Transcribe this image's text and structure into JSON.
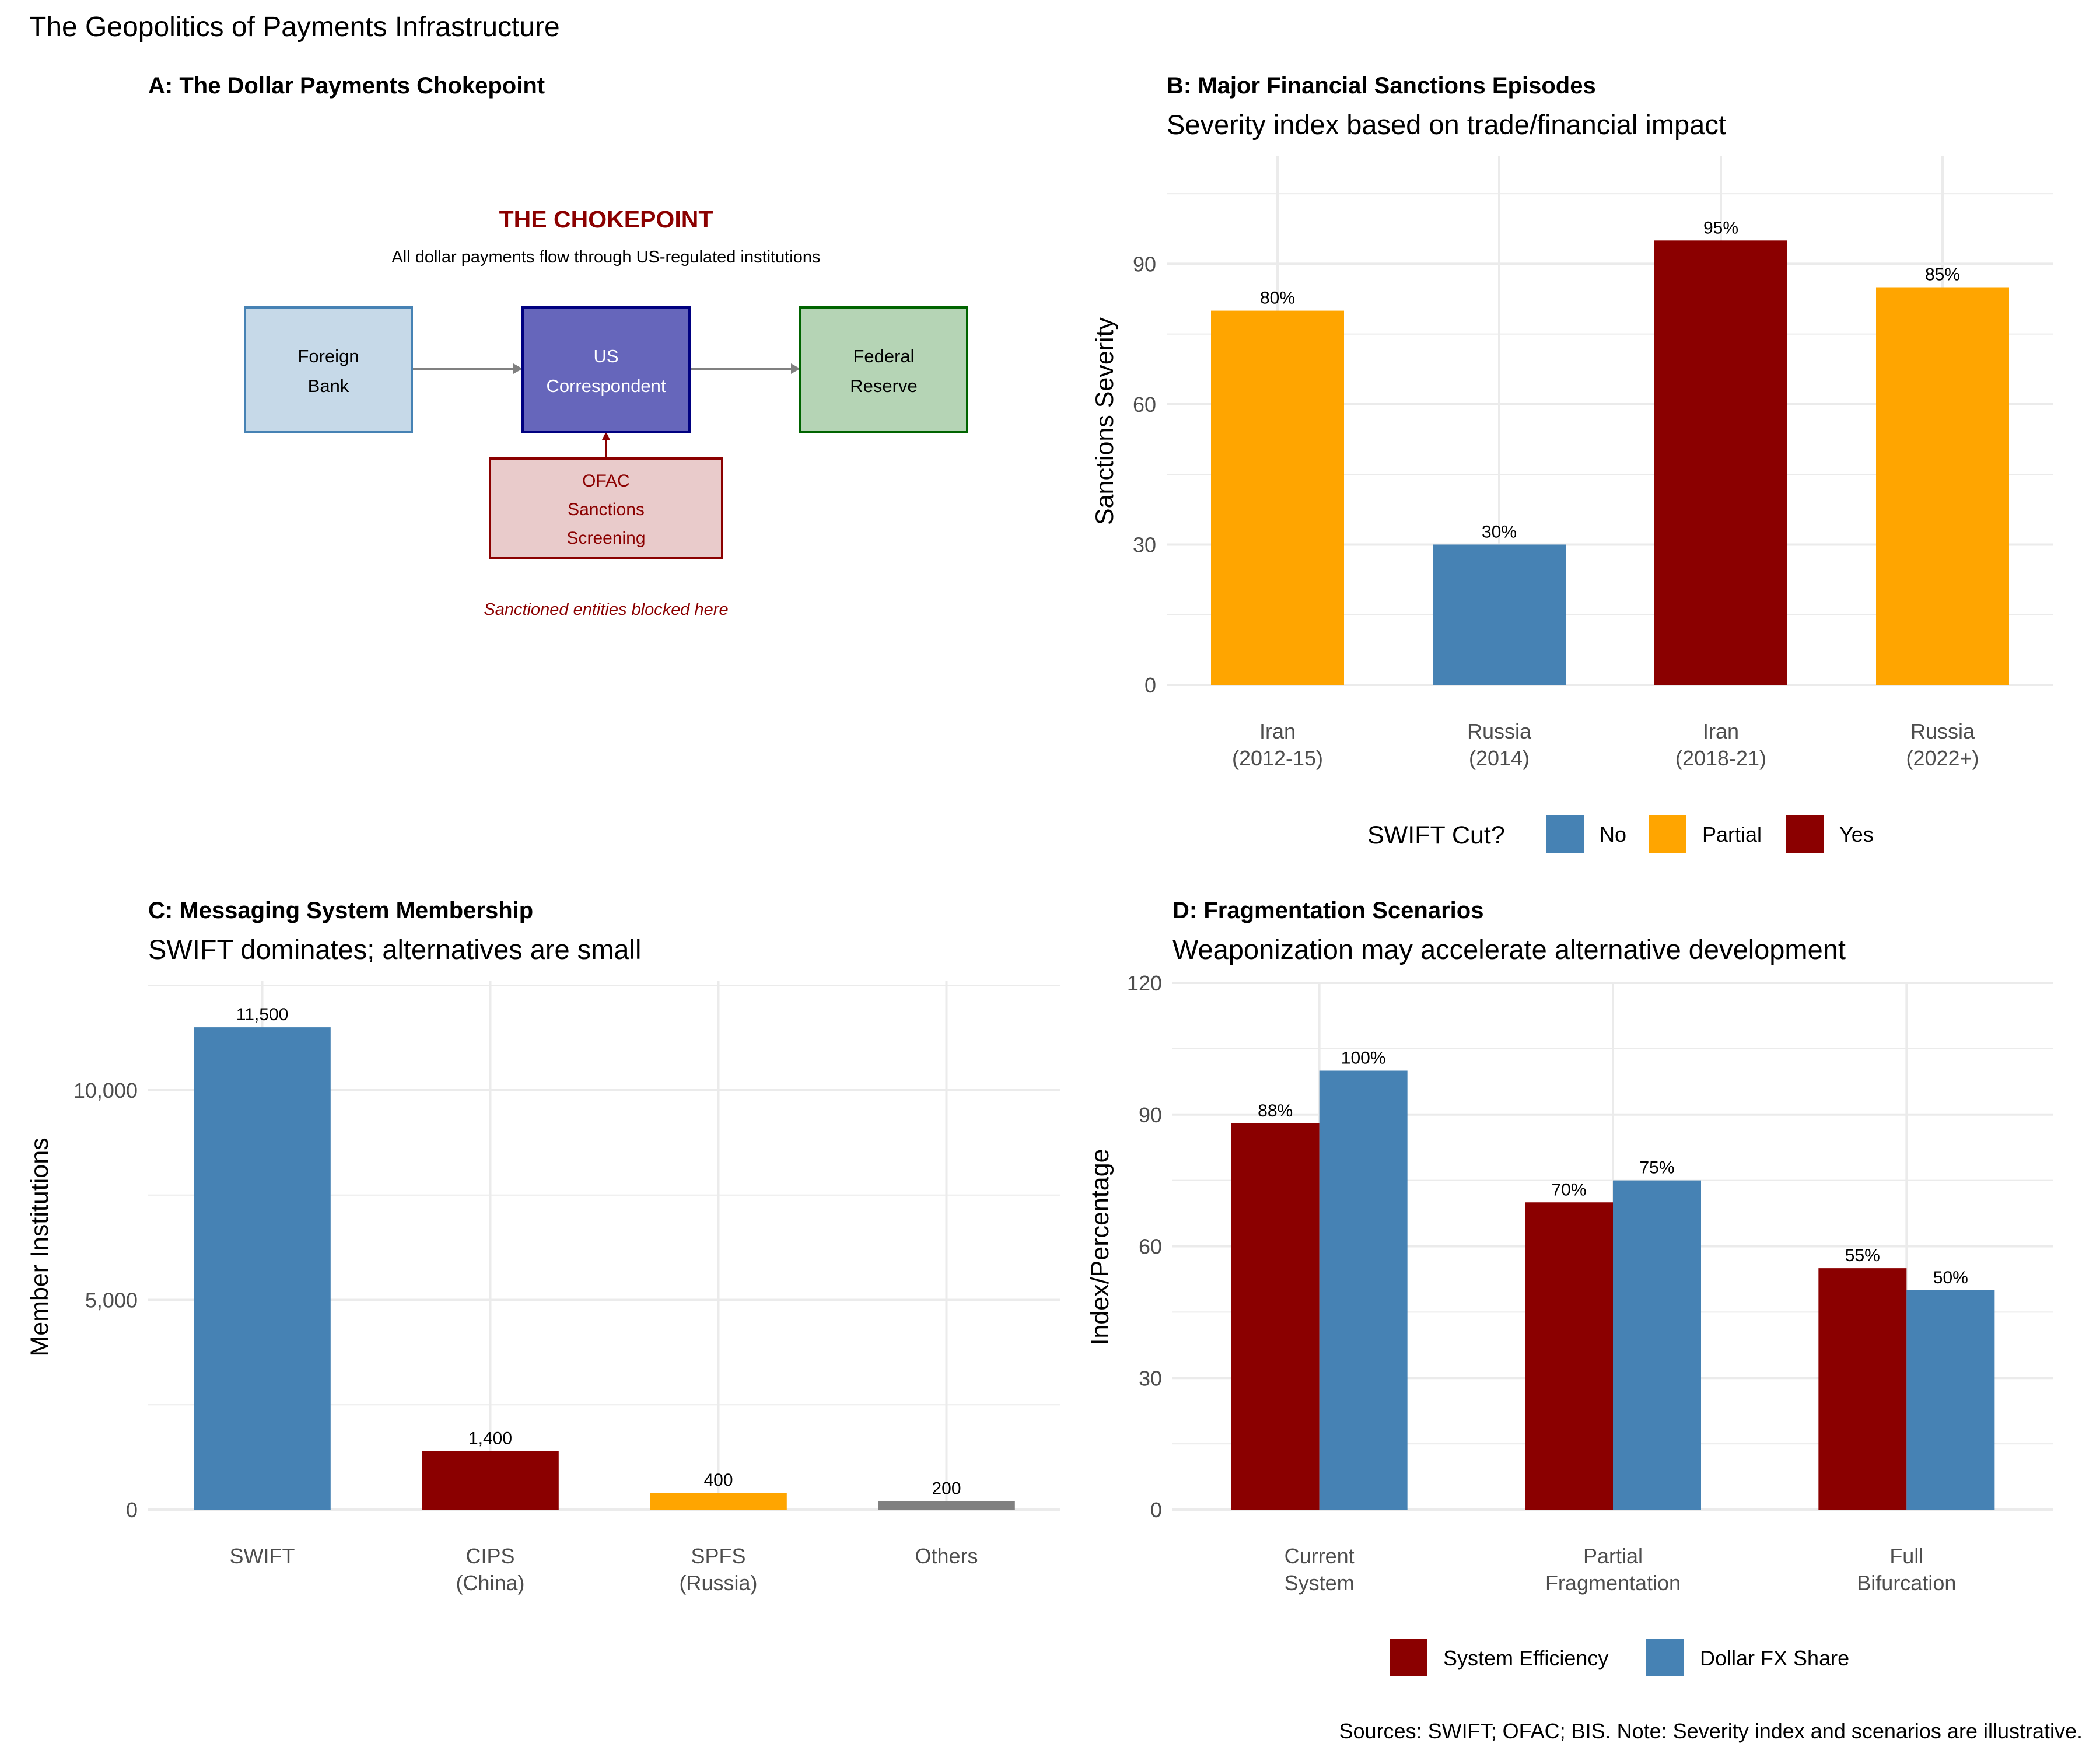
{
  "figure": {
    "title": "The Geopolitics of Payments Infrastructure",
    "caption": "Sources: SWIFT; OFAC; BIS. Note: Severity index and scenarios are illustrative."
  },
  "colors": {
    "yes_red": "#8B0000",
    "no_blue": "#4682B4",
    "partial_orange": "#FFA500",
    "gray": "#808080",
    "grid": "#EBEBEB",
    "text": "#000000",
    "tick_text": "#4D4D4D"
  },
  "panel_a": {
    "title": "A: The Dollar Payments Chokepoint",
    "heading": "THE CHOKEPOINT",
    "subheading": "All dollar payments flow through US-regulated institutions",
    "boxes": {
      "foreign_bank": [
        "Foreign",
        "Bank"
      ],
      "us_correspondent": [
        "US",
        "Correspondent"
      ],
      "federal_reserve": [
        "Federal",
        "Reserve"
      ],
      "ofac": [
        "OFAC",
        "Sanctions",
        "Screening"
      ]
    },
    "note": "Sanctioned entities blocked here",
    "box_colors": {
      "foreign_fill": "#C6D9E8",
      "foreign_stroke": "#4682B4",
      "us_fill": "#6666BB",
      "us_stroke": "#000080",
      "fed_fill": "#B5D4B5",
      "fed_stroke": "#006400",
      "ofac_fill": "#E9CBCB",
      "ofac_stroke": "#8B0000",
      "arrow": "#808080"
    }
  },
  "chart_data": [
    {
      "id": "B",
      "type": "bar",
      "title": "B: Major Financial Sanctions Episodes",
      "subtitle": "Severity index based on trade/financial impact",
      "xlabel": "",
      "ylabel": "Sanctions Severity",
      "categories": [
        [
          "Iran",
          "(2012-15)"
        ],
        [
          "Russia",
          "(2014)"
        ],
        [
          "Iran",
          "(2018-21)"
        ],
        [
          "Russia",
          "(2022+)"
        ]
      ],
      "values": [
        80,
        30,
        95,
        85
      ],
      "labels": [
        "80%",
        "30%",
        "95%",
        "85%"
      ],
      "swift_cut": [
        "Partial",
        "No",
        "Yes",
        "Partial"
      ],
      "ylim": [
        0,
        113
      ],
      "yticks": [
        0,
        30,
        60,
        90
      ],
      "legend": {
        "title": "SWIFT Cut?",
        "entries": [
          "No",
          "Partial",
          "Yes"
        ],
        "position": "bottom"
      }
    },
    {
      "id": "C",
      "type": "bar",
      "title": "C: Messaging System Membership",
      "subtitle": "SWIFT dominates; alternatives are small",
      "xlabel": "",
      "ylabel": "Member Institutions",
      "categories": [
        [
          "SWIFT"
        ],
        [
          "CIPS",
          "(China)"
        ],
        [
          "SPFS",
          "(Russia)"
        ],
        [
          "Others"
        ]
      ],
      "values": [
        11500,
        1400,
        400,
        200
      ],
      "labels": [
        "11,500",
        "1,400",
        "400",
        "200"
      ],
      "ylim": [
        0,
        12600
      ],
      "yticks": [
        0,
        5000,
        10000
      ],
      "ytick_labels": [
        "0",
        "5,000",
        "10,000"
      ]
    },
    {
      "id": "D",
      "type": "bar",
      "title": "D: Fragmentation Scenarios",
      "subtitle": "Weaponization may accelerate alternative development",
      "xlabel": "",
      "ylabel": "Index/Percentage",
      "categories": [
        [
          "Current",
          "System"
        ],
        [
          "Partial",
          "Fragmentation"
        ],
        [
          "Full",
          "Bifurcation"
        ]
      ],
      "series": [
        {
          "name": "System Efficiency",
          "values": [
            88,
            70,
            55
          ],
          "labels": [
            "88%",
            "70%",
            "55%"
          ]
        },
        {
          "name": "Dollar FX Share",
          "values": [
            100,
            75,
            50
          ],
          "labels": [
            "100%",
            "75%",
            "50%"
          ]
        }
      ],
      "ylim": [
        0,
        120
      ],
      "yticks": [
        0,
        30,
        60,
        90,
        120
      ],
      "legend": {
        "position": "bottom"
      }
    }
  ]
}
